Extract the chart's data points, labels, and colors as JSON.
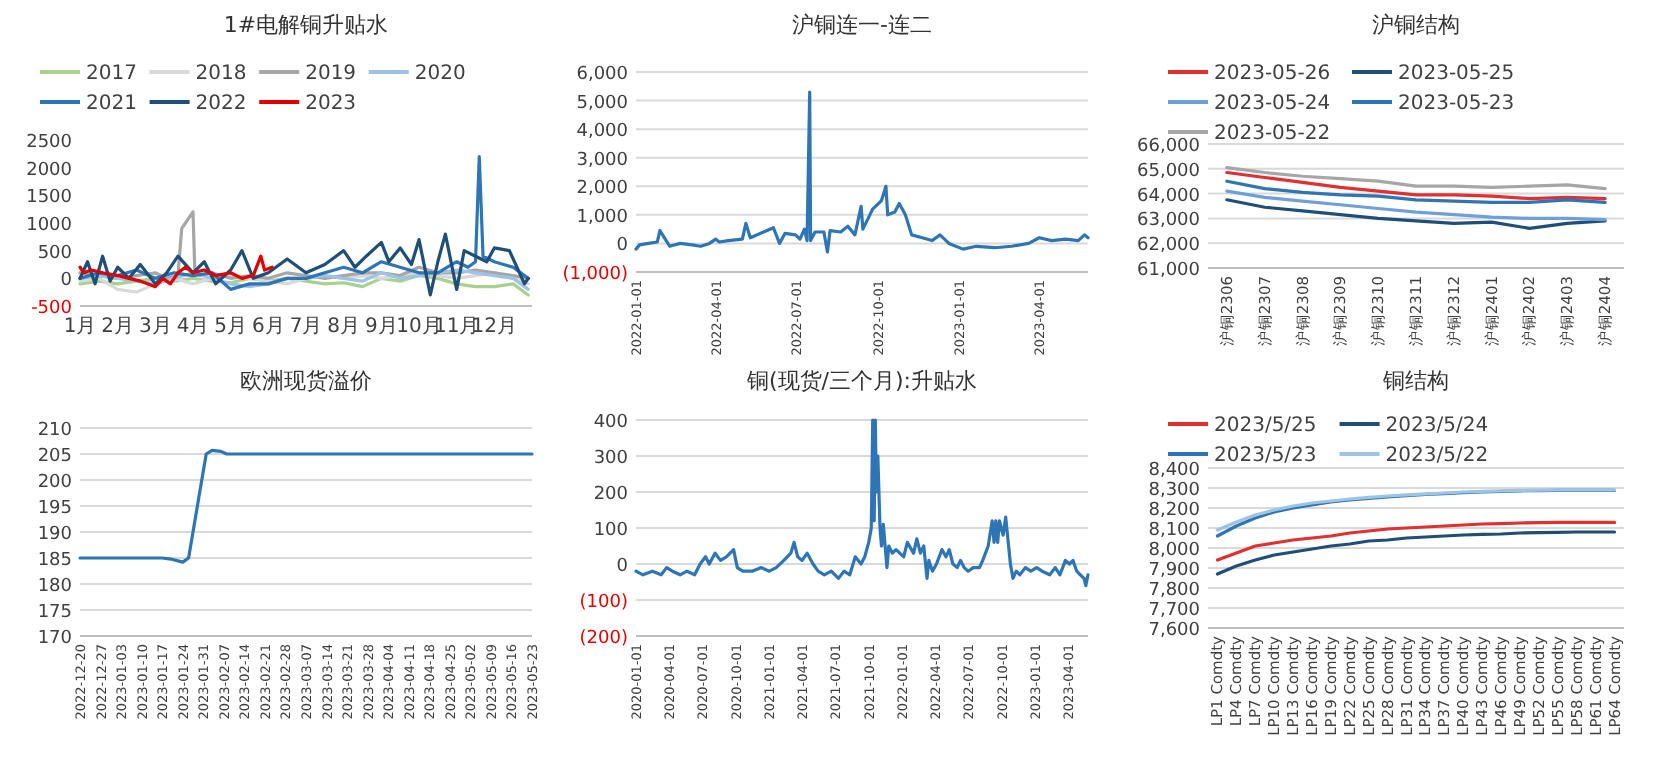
{
  "chart_data": [
    {
      "type": "line",
      "title": "1#电解铜升贴水",
      "legend": "top",
      "ylim": [
        -500,
        2500
      ],
      "yticks": [
        -500,
        0,
        500,
        1000,
        1500,
        2000,
        2500
      ],
      "xlim": [
        1,
        13
      ],
      "xticks": [
        {
          "value": 1,
          "label": "1月"
        },
        {
          "value": 2,
          "label": "2月"
        },
        {
          "value": 3,
          "label": "3月"
        },
        {
          "value": 4,
          "label": "4月"
        },
        {
          "value": 5,
          "label": "5月"
        },
        {
          "value": 6,
          "label": "6月"
        },
        {
          "value": 7,
          "label": "7月"
        },
        {
          "value": 8,
          "label": "8月"
        },
        {
          "value": 9,
          "label": "9月"
        },
        {
          "value": 10,
          "label": "10月"
        },
        {
          "value": 11,
          "label": "11月"
        },
        {
          "value": 12,
          "label": "12月"
        }
      ],
      "series": [
        {
          "name": "2017",
          "color": "#a9d18e",
          "x": [
            1,
            1.5,
            2,
            2.5,
            3,
            3.5,
            4,
            4.5,
            5,
            5.5,
            6,
            6.5,
            7,
            7.5,
            8,
            8.5,
            9,
            9.5,
            10,
            10.5,
            11,
            11.5,
            12,
            12.5,
            12.9
          ],
          "values": [
            -100,
            -50,
            -100,
            -50,
            0,
            -50,
            0,
            -50,
            -80,
            0,
            -50,
            0,
            -50,
            -100,
            -80,
            -150,
            0,
            -50,
            50,
            0,
            -100,
            -150,
            -150,
            -100,
            -300
          ]
        },
        {
          "name": "2018",
          "color": "#d9d9d9",
          "x": [
            1,
            1.5,
            2,
            2.5,
            3,
            3.5,
            4,
            4.5,
            5,
            5.5,
            6,
            6.5,
            7,
            7.5,
            8,
            8.5,
            9,
            9.5,
            10,
            10.5,
            11,
            11.5,
            12,
            12.5,
            12.9
          ],
          "values": [
            -50,
            0,
            -200,
            -250,
            -100,
            0,
            -100,
            0,
            50,
            0,
            -50,
            -100,
            0,
            50,
            0,
            50,
            0,
            50,
            100,
            50,
            0,
            50,
            100,
            0,
            -100
          ]
        },
        {
          "name": "2019",
          "color": "#a6a6a6",
          "x": [
            1,
            1.5,
            2,
            2.5,
            3,
            3.3,
            3.6,
            3.7,
            3.8,
            3.9,
            4.0,
            4.05,
            4.2,
            4.5,
            5,
            5.5,
            6,
            6.5,
            7,
            7.5,
            8,
            8.5,
            9,
            9.5,
            10,
            10.5,
            11,
            11.5,
            12,
            12.5,
            12.9
          ],
          "values": [
            100,
            50,
            0,
            50,
            100,
            0,
            50,
            900,
            1000,
            1100,
            1200,
            100,
            50,
            100,
            0,
            50,
            0,
            100,
            50,
            0,
            50,
            100,
            100,
            50,
            200,
            100,
            100,
            150,
            100,
            50,
            0
          ]
        },
        {
          "name": "2020",
          "color": "#9dc3e6",
          "x": [
            1,
            1.5,
            2,
            2.5,
            3,
            3.5,
            4,
            4.5,
            5,
            5.5,
            6,
            6.5,
            7,
            7.5,
            8,
            8.5,
            9,
            9.5,
            10,
            10.5,
            11,
            11.5,
            12,
            12.5,
            12.9
          ],
          "values": [
            0,
            50,
            0,
            -50,
            -100,
            0,
            100,
            0,
            -100,
            -150,
            -100,
            0,
            0,
            50,
            0,
            -50,
            100,
            0,
            50,
            100,
            150,
            100,
            50,
            0,
            -200
          ]
        },
        {
          "name": "2021",
          "color": "#2e75b6",
          "x": [
            1,
            1.5,
            2,
            2.5,
            3,
            3.5,
            4,
            4.5,
            5,
            5.5,
            6,
            6.5,
            7,
            7.5,
            8,
            8.5,
            9,
            9.5,
            10,
            10.5,
            11,
            11.3,
            11.5,
            11.6,
            11.7,
            12,
            12.5,
            12.9
          ],
          "values": [
            0,
            100,
            50,
            150,
            0,
            100,
            50,
            100,
            -200,
            -100,
            -100,
            0,
            0,
            100,
            200,
            100,
            300,
            200,
            100,
            100,
            300,
            200,
            300,
            2200,
            400,
            300,
            200,
            0
          ]
        },
        {
          "name": "2022",
          "color": "#1f4e79",
          "x": [
            1,
            1.2,
            1.4,
            1.6,
            1.8,
            2,
            2.3,
            2.6,
            3,
            3.3,
            3.6,
            4,
            4.3,
            4.6,
            5,
            5.3,
            5.6,
            6,
            6.5,
            7,
            7.5,
            8,
            8.3,
            8.6,
            9,
            9.2,
            9.5,
            9.8,
            10,
            10.3,
            10.5,
            10.7,
            11,
            11.2,
            11.5,
            11.8,
            12,
            12.4,
            12.6,
            12.8,
            12.9
          ],
          "values": [
            0,
            300,
            -100,
            400,
            -50,
            200,
            0,
            250,
            -100,
            100,
            400,
            100,
            300,
            -100,
            150,
            500,
            0,
            100,
            350,
            100,
            250,
            500,
            200,
            400,
            650,
            300,
            550,
            250,
            700,
            -300,
            300,
            800,
            -200,
            500,
            400,
            300,
            550,
            500,
            200,
            -100,
            0
          ]
        },
        {
          "name": "2023",
          "color": "#e00000",
          "x": [
            1,
            1.1,
            1.3,
            1.6,
            2,
            2.3,
            2.6,
            3,
            3.2,
            3.4,
            3.6,
            3.8,
            4,
            4.3,
            4.6,
            5,
            5.3,
            5.6,
            5.8,
            5.9,
            6.1
          ],
          "values": [
            200,
            100,
            150,
            100,
            50,
            0,
            -50,
            -150,
            0,
            -100,
            100,
            200,
            100,
            150,
            50,
            100,
            0,
            50,
            400,
            150,
            200
          ]
        }
      ]
    },
    {
      "type": "line",
      "title": "沪铜连一-连二",
      "grid": "y",
      "ylim": [
        -1000,
        6000
      ],
      "yticks": [
        {
          "value": -1000,
          "label": "(1,000)"
        },
        0,
        {
          "value": 1000,
          "label": "1,000"
        },
        {
          "value": 2000,
          "label": "2,000"
        },
        {
          "value": 3000,
          "label": "3,000"
        },
        {
          "value": 4000,
          "label": "4,000"
        },
        {
          "value": 5000,
          "label": "5,000"
        },
        {
          "value": 6000,
          "label": "6,000"
        }
      ],
      "xlim": [
        "2022-01-01",
        "2023-05-26"
      ],
      "xticks": [
        "2022-01-01",
        "2022-04-01",
        "2022-07-01",
        "2022-10-01",
        "2023-01-01",
        "2023-04-01"
      ],
      "series": [
        {
          "color": "#2e75b6",
          "x": [
            "2022-01-01",
            "2022-01-05",
            "2022-01-15",
            "2022-01-25",
            "2022-01-28",
            "2022-02-03",
            "2022-02-08",
            "2022-02-20",
            "2022-03-05",
            "2022-03-15",
            "2022-03-25",
            "2022-04-01",
            "2022-04-05",
            "2022-04-15",
            "2022-05-01",
            "2022-05-05",
            "2022-05-10",
            "2022-05-25",
            "2022-06-05",
            "2022-06-12",
            "2022-06-18",
            "2022-06-30",
            "2022-07-05",
            "2022-07-10",
            "2022-07-13",
            "2022-07-16",
            "2022-07-17",
            "2022-07-22",
            "2022-08-01",
            "2022-08-05",
            "2022-08-08",
            "2022-08-20",
            "2022-08-28",
            "2022-09-05",
            "2022-09-12",
            "2022-09-14",
            "2022-09-25",
            "2022-10-05",
            "2022-10-10",
            "2022-10-12",
            "2022-10-20",
            "2022-10-25",
            "2022-11-01",
            "2022-11-08",
            "2022-11-20",
            "2022-12-01",
            "2022-12-10",
            "2022-12-20",
            "2023-01-05",
            "2023-01-20",
            "2023-02-10",
            "2023-03-01",
            "2023-03-20",
            "2023-04-01",
            "2023-04-15",
            "2023-05-01",
            "2023-05-15",
            "2023-05-22",
            "2023-05-26"
          ],
          "values": [
            -200,
            -50,
            0,
            50,
            450,
            150,
            -100,
            0,
            -50,
            -100,
            0,
            150,
            50,
            100,
            150,
            700,
            200,
            400,
            550,
            0,
            350,
            300,
            150,
            500,
            100,
            5300,
            100,
            400,
            400,
            -300,
            450,
            400,
            600,
            300,
            1300,
            500,
            1200,
            1500,
            2000,
            1000,
            1100,
            1400,
            1000,
            300,
            200,
            100,
            300,
            0,
            -200,
            -100,
            -150,
            -100,
            0,
            200,
            100,
            150,
            100,
            300,
            200
          ]
        }
      ]
    },
    {
      "type": "line",
      "title": "沪铜结构",
      "legend": "top",
      "grid": "y",
      "ylim": [
        61000,
        66000
      ],
      "yticks": [
        {
          "value": 61000,
          "label": "61,000"
        },
        {
          "value": 62000,
          "label": "62,000"
        },
        {
          "value": 63000,
          "label": "63,000"
        },
        {
          "value": 64000,
          "label": "64,000"
        },
        {
          "value": 65000,
          "label": "65,000"
        },
        {
          "value": 66000,
          "label": "66,000"
        }
      ],
      "categories": [
        "沪铜2306",
        "沪铜2307",
        "沪铜2308",
        "沪铜2309",
        "沪铜2310",
        "沪铜2311",
        "沪铜2312",
        "沪铜2401",
        "沪铜2402",
        "沪铜2403",
        "沪铜2404"
      ],
      "series": [
        {
          "name": "2023-05-26",
          "color": "#e03030",
          "values": [
            64850,
            64650,
            64450,
            64250,
            64100,
            63950,
            63950,
            63900,
            63800,
            63850,
            63800
          ]
        },
        {
          "name": "2023-05-25",
          "color": "#1f4e79",
          "values": [
            63750,
            63450,
            63300,
            63150,
            63000,
            62900,
            62800,
            62850,
            62600,
            62800,
            62900
          ]
        },
        {
          "name": "2023-05-24",
          "color": "#6f9fd8",
          "values": [
            64100,
            63850,
            63700,
            63550,
            63400,
            63250,
            63150,
            63050,
            63000,
            63000,
            62950
          ]
        },
        {
          "name": "2023-05-23",
          "color": "#2e75b6",
          "values": [
            64500,
            64200,
            64050,
            63950,
            63900,
            63750,
            63700,
            63650,
            63650,
            63750,
            63650
          ]
        },
        {
          "name": "2023-05-22",
          "color": "#a6a6a6",
          "values": [
            65050,
            64850,
            64700,
            64600,
            64500,
            64300,
            64300,
            64250,
            64300,
            64350,
            64200
          ]
        }
      ]
    },
    {
      "type": "line",
      "title": "欧洲现货溢价",
      "grid": "y",
      "ylim": [
        170,
        210
      ],
      "yticks": [
        170,
        175,
        180,
        185,
        190,
        195,
        200,
        205,
        210
      ],
      "xlim": [
        "2022-12-20",
        "2023-05-23"
      ],
      "xticks": [
        "2022-12-20",
        "2022-12-27",
        "2023-01-03",
        "2023-01-10",
        "2023-01-17",
        "2023-01-24",
        "2023-01-31",
        "2023-02-07",
        "2023-02-14",
        "2023-02-21",
        "2023-02-28",
        "2023-03-07",
        "2023-03-14",
        "2023-03-21",
        "2023-03-28",
        "2023-04-04",
        "2023-04-11",
        "2023-04-18",
        "2023-04-25",
        "2023-05-02",
        "2023-05-09",
        "2023-05-16",
        "2023-05-23"
      ],
      "series": [
        {
          "color": "#2e75b6",
          "x": [
            "2022-12-20",
            "2023-01-17",
            "2023-01-20",
            "2023-01-24",
            "2023-01-26",
            "2023-01-29",
            "2023-02-01",
            "2023-02-03",
            "2023-02-06",
            "2023-02-08",
            "2023-05-23"
          ],
          "values": [
            185,
            185,
            184.8,
            184.2,
            185,
            195,
            205,
            205.7,
            205.5,
            205,
            205
          ]
        }
      ]
    },
    {
      "type": "line",
      "title": "铜(现货/三个月):升贴水",
      "grid": "y",
      "ylim": [
        -200,
        400
      ],
      "yticks": [
        {
          "value": -200,
          "label": "(200)"
        },
        {
          "value": -100,
          "label": "(100)"
        },
        0,
        100,
        200,
        300,
        400
      ],
      "xlim": [
        "2020-01-01",
        "2023-05-26"
      ],
      "xticks": [
        "2020-01-01",
        "2020-04-01",
        "2020-07-01",
        "2020-10-01",
        "2021-01-01",
        "2021-04-01",
        "2021-07-01",
        "2021-10-01",
        "2022-01-01",
        "2022-04-01",
        "2022-07-01",
        "2022-10-01",
        "2023-01-01",
        "2023-04-01"
      ],
      "series": [
        {
          "color": "#2e75b6",
          "x": [
            "2020-01-01",
            "2020-01-20",
            "2020-02-15",
            "2020-03-10",
            "2020-03-25",
            "2020-04-10",
            "2020-05-01",
            "2020-05-20",
            "2020-06-10",
            "2020-06-25",
            "2020-07-10",
            "2020-07-20",
            "2020-08-05",
            "2020-08-20",
            "2020-09-05",
            "2020-09-25",
            "2020-10-05",
            "2020-10-20",
            "2020-11-15",
            "2020-12-10",
            "2021-01-01",
            "2021-01-20",
            "2021-02-10",
            "2021-03-01",
            "2021-03-10",
            "2021-03-20",
            "2021-04-01",
            "2021-04-15",
            "2021-05-01",
            "2021-05-15",
            "2021-06-01",
            "2021-06-20",
            "2021-07-10",
            "2021-07-25",
            "2021-08-10",
            "2021-08-25",
            "2021-09-10",
            "2021-09-20",
            "2021-10-01",
            "2021-10-08",
            "2021-10-12",
            "2021-10-16",
            "2021-10-19",
            "2021-10-22",
            "2021-10-26",
            "2021-11-01",
            "2021-11-05",
            "2021-11-10",
            "2021-11-20",
            "2021-11-25",
            "2021-12-05",
            "2021-12-15",
            "2022-01-05",
            "2022-01-15",
            "2022-02-01",
            "2022-02-10",
            "2022-02-20",
            "2022-03-01",
            "2022-03-10",
            "2022-03-15",
            "2022-03-25",
            "2022-04-05",
            "2022-04-20",
            "2022-05-01",
            "2022-05-10",
            "2022-05-20",
            "2022-06-01",
            "2022-06-10",
            "2022-06-20",
            "2022-07-01",
            "2022-07-15",
            "2022-08-01",
            "2022-08-10",
            "2022-08-25",
            "2022-09-05",
            "2022-09-10",
            "2022-09-15",
            "2022-09-20",
            "2022-09-25",
            "2022-10-05",
            "2022-10-12",
            "2022-10-20",
            "2022-10-25",
            "2022-11-01",
            "2022-11-10",
            "2022-11-20",
            "2022-12-05",
            "2022-12-20",
            "2023-01-05",
            "2023-01-20",
            "2023-02-10",
            "2023-02-25",
            "2023-03-10",
            "2023-03-25",
            "2023-04-05",
            "2023-04-15",
            "2023-04-25",
            "2023-05-05",
            "2023-05-15",
            "2023-05-20",
            "2023-05-26"
          ],
          "values": [
            -20,
            -30,
            -20,
            -30,
            -10,
            -20,
            -30,
            -20,
            -30,
            0,
            20,
            0,
            30,
            10,
            20,
            40,
            -10,
            -20,
            -20,
            -10,
            -20,
            -10,
            10,
            30,
            60,
            20,
            10,
            30,
            0,
            -20,
            -30,
            -20,
            -40,
            -20,
            -30,
            20,
            0,
            20,
            60,
            100,
            400,
            120,
            400,
            200,
            300,
            100,
            50,
            110,
            -10,
            50,
            30,
            40,
            20,
            60,
            30,
            70,
            30,
            50,
            -40,
            10,
            -20,
            0,
            40,
            20,
            40,
            0,
            -10,
            10,
            -10,
            -20,
            -10,
            -10,
            10,
            50,
            120,
            60,
            120,
            60,
            120,
            80,
            130,
            50,
            0,
            -40,
            -20,
            -30,
            -10,
            -20,
            -10,
            -20,
            -30,
            -10,
            -30,
            10,
            0,
            10,
            -20,
            -30,
            -40,
            -60,
            -30
          ]
        }
      ]
    },
    {
      "type": "line",
      "title": "铜结构",
      "legend": "top",
      "grid": "y",
      "ylim": [
        7600,
        8400
      ],
      "yticks": [
        {
          "value": 7600,
          "label": "7,600"
        },
        {
          "value": 7700,
          "label": "7,700"
        },
        {
          "value": 7800,
          "label": "7,800"
        },
        {
          "value": 7900,
          "label": "7,900"
        },
        {
          "value": 8000,
          "label": "8,000"
        },
        {
          "value": 8100,
          "label": "8,100"
        },
        {
          "value": 8200,
          "label": "8,200"
        },
        {
          "value": 8300,
          "label": "8,300"
        },
        {
          "value": 8400,
          "label": "8,400"
        }
      ],
      "categories": [
        "LP1 Comdty",
        "LP4 Comdty",
        "LP7 Comdty",
        "LP10 Comdty",
        "LP13 Comdty",
        "LP16 Comdty",
        "LP19 Comdty",
        "LP22 Comdty",
        "LP25 Comdty",
        "LP28 Comdty",
        "LP31 Comdty",
        "LP34 Comdty",
        "LP37 Comdty",
        "LP40 Comdty",
        "LP43 Comdty",
        "LP46 Comdty",
        "LP49 Comdty",
        "LP52 Comdty",
        "LP55 Comdty",
        "LP58 Comdty",
        "LP61 Comdty",
        "LP64 Comdty"
      ],
      "series": [
        {
          "name": "2023/5/25",
          "color": "#e03030",
          "values": [
            7940,
            7975,
            8010,
            8025,
            8040,
            8050,
            8060,
            8075,
            8085,
            8095,
            8100,
            8105,
            8110,
            8115,
            8120,
            8122,
            8125,
            8127,
            8128,
            8128,
            8128,
            8128
          ]
        },
        {
          "name": "2023/5/24",
          "color": "#1f4e79",
          "values": [
            7870,
            7910,
            7940,
            7965,
            7980,
            7995,
            8010,
            8020,
            8035,
            8040,
            8050,
            8055,
            8060,
            8065,
            8068,
            8070,
            8075,
            8077,
            8078,
            8080,
            8080,
            8080
          ]
        },
        {
          "name": "2023/5/23",
          "color": "#2e75b6",
          "values": [
            8060,
            8110,
            8150,
            8180,
            8200,
            8215,
            8230,
            8240,
            8248,
            8255,
            8262,
            8268,
            8272,
            8277,
            8280,
            8283,
            8286,
            8287,
            8288,
            8288,
            8288,
            8288
          ]
        },
        {
          "name": "2023/5/22",
          "color": "#9dc3e6",
          "values": [
            8090,
            8130,
            8165,
            8190,
            8210,
            8225,
            8235,
            8245,
            8253,
            8260,
            8266,
            8271,
            8275,
            8280,
            8283,
            8286,
            8288,
            8289,
            8290,
            8290,
            8290,
            8290
          ]
        }
      ]
    }
  ]
}
